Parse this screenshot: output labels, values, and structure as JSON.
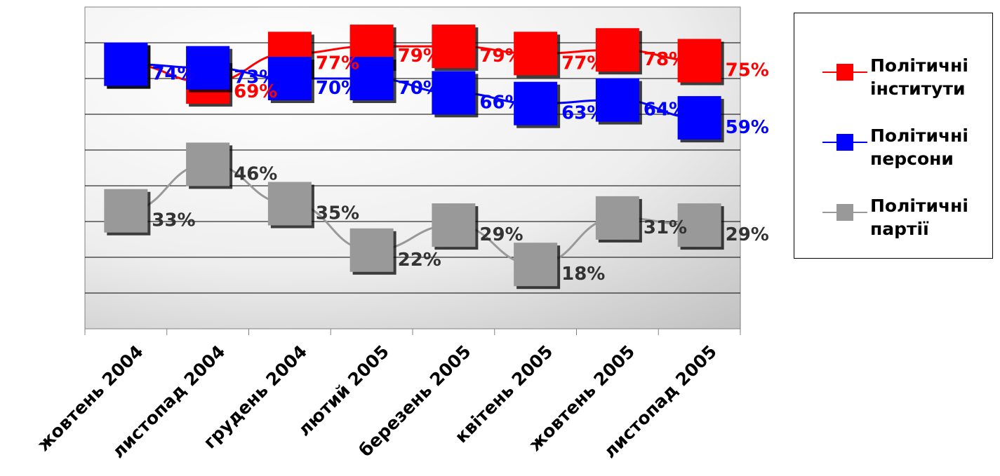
{
  "chart_data": {
    "type": "line",
    "categories": [
      "жовтень 2004",
      "листопад 2004",
      "грудень 2004",
      "лютий 2005",
      "березень 2005",
      "квітень 2005",
      "жовтень 2005",
      "листопад 2005"
    ],
    "series": [
      {
        "name": "Політичні інститути",
        "color": "#ff0000",
        "values": [
          74,
          69,
          77,
          79,
          79,
          77,
          78,
          75
        ],
        "labels": [
          "74%",
          "69%",
          "77%",
          "79%",
          "79%",
          "77%",
          "78%",
          "75%"
        ]
      },
      {
        "name": "Політичні персони",
        "color": "#0000ff",
        "values": [
          74,
          73,
          70,
          70,
          66,
          63,
          64,
          59
        ],
        "labels": [
          "74%",
          "73%",
          "70%",
          "70%",
          "66%",
          "63%",
          "64%",
          "59%"
        ]
      },
      {
        "name": "Політичні партії",
        "color": "#999999",
        "label_color": "#333333",
        "values": [
          33,
          46,
          35,
          22,
          29,
          18,
          31,
          29
        ],
        "labels": [
          "33%",
          "46%",
          "35%",
          "22%",
          "29%",
          "18%",
          "31%",
          "29%"
        ]
      }
    ],
    "ylim": [
      0,
      90
    ],
    "grid": true,
    "legend": "right",
    "title": "",
    "xlabel": "",
    "ylabel": ""
  },
  "legend": {
    "items": [
      {
        "line1": "Політичні",
        "line2": "інститути",
        "color": "#ff0000"
      },
      {
        "line1": "Політичні",
        "line2": "персони",
        "color": "#0000ff"
      },
      {
        "line1": "Політичні",
        "line2": "партії",
        "color": "#999999"
      }
    ]
  }
}
